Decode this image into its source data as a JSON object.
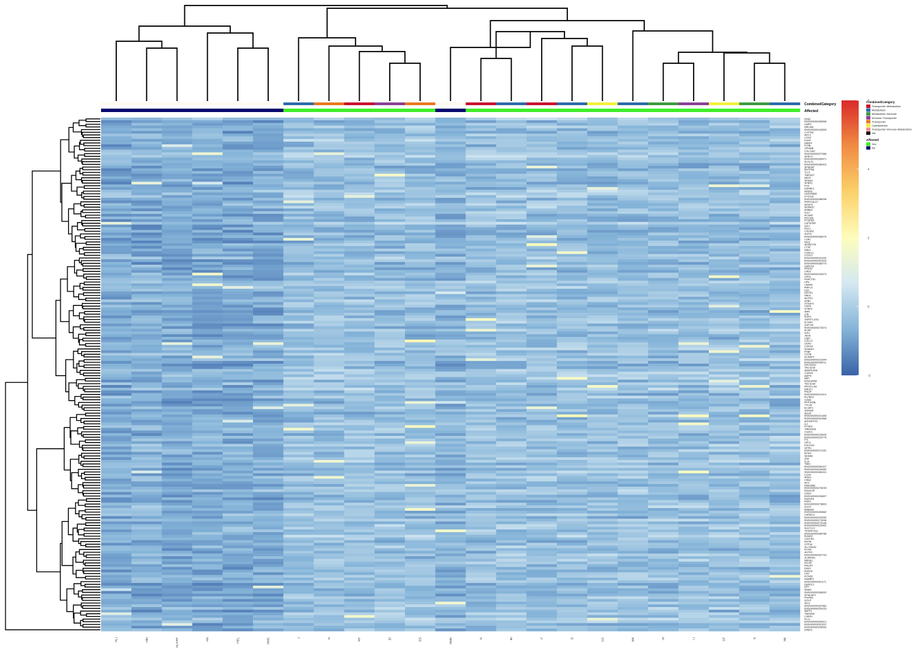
{
  "chart_data": {
    "type": "heatmap",
    "title": "",
    "samples": [
      "HLI",
      "HEI",
      "HLT.RT",
      "HS",
      "HEL",
      "HMC",
      "J",
      "H",
      "RT",
      "EI",
      "ES",
      "HMK",
      "G",
      "BI",
      "F",
      "D",
      "CC",
      "EE",
      "III",
      "I.I",
      "ST",
      "S",
      "SE"
    ],
    "sample_category": [
      "",
      "",
      "",
      "",
      "",
      "",
      "Metabolism",
      "Transporter",
      "Transporter-Metabolism",
      "Immune-Transporter",
      "Transporter",
      "",
      "Transporter-Metabolism",
      "Metabolism",
      "Transporter-Metabolism",
      "Metabolism",
      "Cytoskeleton",
      "Metabolism",
      "Metabolism-Immune",
      "Immune-Transporter",
      "Cytoskeleton",
      "Metabolism-Immune",
      "Metabolism"
    ],
    "sample_affected": [
      "No",
      "No",
      "No",
      "No",
      "No",
      "No",
      "Yes",
      "Yes",
      "Yes",
      "Yes",
      "Yes",
      "No",
      "Yes",
      "Yes",
      "Yes",
      "Yes",
      "Yes",
      "Yes",
      "Yes",
      "Yes",
      "Yes",
      "Yes",
      "Yes"
    ],
    "annotation_labels": {
      "category": "CombinedCategory",
      "affected": "Affected"
    },
    "legend": {
      "category_title": "CombinedCategory",
      "categories": [
        {
          "name": "Transporter-Metabolism",
          "color": "#c8102e"
        },
        {
          "name": "Metabolism",
          "color": "#2e6aa8"
        },
        {
          "name": "Metabolism-Immune",
          "color": "#3f9a3f"
        },
        {
          "name": "Immune-Transporter",
          "color": "#8a3f96"
        },
        {
          "name": "Transporter",
          "color": "#e87722"
        },
        {
          "name": "Cytoskeleton",
          "color": "#f2ef3a"
        },
        {
          "name": "Transporter-Immune-Metabolism",
          "color": "#f08a8a"
        },
        {
          "name": "NA",
          "color": "#111111"
        }
      ],
      "affected_title": "Affected",
      "affected": [
        {
          "name": "Yes",
          "color": "#41ee2a"
        },
        {
          "name": "No",
          "color": "#08086e"
        }
      ]
    },
    "color_scale": {
      "min": -2,
      "max": 6,
      "ticks": [
        -2,
        0,
        2,
        4,
        6
      ],
      "colors": [
        "#3a63a8",
        "#84b3d8",
        "#d4e8f2",
        "#fefdbd",
        "#fbd16a",
        "#f08c43",
        "#d92a2a"
      ]
    },
    "genes": [
      "FRA2",
      "ENSG00000286558",
      "LIMP2",
      "NRCAM",
      "ENSG00000142839",
      "CYP7B1",
      "ADC1",
      "CCN2",
      "FGF9",
      "FABP4",
      "FLNB",
      "GPNMB",
      "COL11A2",
      "ENSG00000227086",
      "SERC3",
      "ENSG00000286471",
      "KLHL41",
      "ENSG00000286423",
      "SPHKAP",
      "ENTPD8",
      "TLC1",
      "TMEM27",
      "MEST",
      "SEMA3",
      "SPRR1",
      "FOS",
      "DDRNF1",
      "AASN2",
      "LINC00865",
      "ZYG11A",
      "ENSG00000288298",
      "PRRT1B-DT",
      "MGAT5",
      "SEMA3C",
      "ERBB3",
      "IGLV",
      "ACSM5",
      "PDCD5L",
      "PTGER3",
      "CATSPER",
      "IQCJ",
      "PSC1",
      "COL8A2",
      "SHITS",
      "ENSG00000288275",
      "LGR1",
      "FAS1",
      "ADAMTS9",
      "CTSF",
      "NRK1",
      "COBLL1",
      "COX10",
      "ENSG00000232200",
      "ENSG00000261025",
      "ENSG00000288773",
      "HAPLN4",
      "PRSS2",
      "CHD2",
      "ENSG00000226473",
      "GPR1",
      "FRACTIN",
      "UPS",
      "LAMA5",
      "PMFLK",
      "CEC",
      "DECR1",
      "NNUL",
      "MCPS1",
      "ASB2",
      "STEAP4",
      "CDR9",
      "SYNP2",
      "AMN",
      "LTB",
      "ROR1",
      "ZNF571-AS1",
      "KCNH1",
      "ZNF705",
      "ENSG00000273074",
      "ACAP",
      "IGF2",
      "JMJD",
      "CNIP",
      "COLC2",
      "LIDR1",
      "CORO1",
      "SHANK1",
      "FRBF",
      "CCDB",
      "SCAMP1",
      "ENSG00000223044",
      "ENSG00000250011",
      "DHY00011",
      "TBC1D30",
      "ANKRD30A",
      "CORN2",
      "AMPH",
      "MBT",
      "ENSG0058",
      "TBC1D3K",
      "PROX1-AS",
      "RNUT1",
      "PNLIP",
      "ENSG00000224114",
      "PLPRR2",
      "GZMK",
      "PPP1R3B",
      "TTC39",
      "ELSAT1",
      "ZNF695",
      "ADH5",
      "ENSG00000231406",
      "ENSG00000281558",
      "ARHGEF33",
      "IL2",
      "PTGR2",
      "TMEM208",
      "CUZD1",
      "ENSG00000228939",
      "ENSG00000232775",
      "FTL",
      "GPC1",
      "POLR3G",
      "VIPR1",
      "ENSG00000273162",
      "EPHA",
      "SEMA6",
      "ZNF",
      "IL15",
      "TMIG",
      "ENSG00000289107",
      "ENSG00000228450",
      "ENSG00000286151",
      "CCNY",
      "AREG",
      "CRB2",
      "AK3",
      "FAM166B",
      "ENSG00000278239",
      "RGACSP",
      "CMC2",
      "ENSG00000226697",
      "RASSF6",
      "RGR1",
      "ENSG00000278603",
      "SOX4",
      "RAB39A",
      "ENSG00000283682",
      "CHRDC4",
      "ENSG00000226330",
      "ENSG00000273098",
      "ENSG00000275146",
      "ENSG00000225492",
      "SULT1C2",
      "TIFA0P-AS1",
      "ENSG00000286788",
      "KIAA02",
      "CD2CR1",
      "MYH6",
      "CFP1A",
      "SLC25A32",
      "KCNG",
      "AGTR1",
      "ENSG00000287733",
      "ZCWPW1",
      "NRXN1",
      "RCOR",
      "PNLIP2",
      "DKK3",
      "ENSG2",
      "CD2",
      "KCNQ2",
      "FAM8P2",
      "ENSG00000261171",
      "DEPDC7",
      "DPT",
      "SNAI2",
      "ENSG00000285532",
      "SPHKAP2",
      "PGRMC",
      "GOLP",
      "SEL1",
      "ENSG00000287982",
      "ENSG00000259153",
      "WIPF1",
      "TMEM26",
      "CSRP1",
      "PLCL",
      "ENSG00000283021",
      "ENSG00000261037",
      "ENSG00000296009",
      "DPEP1"
    ],
    "note_values": "Per-cell expression z-scores are not printed; cells are rendered from the colour scale."
  }
}
